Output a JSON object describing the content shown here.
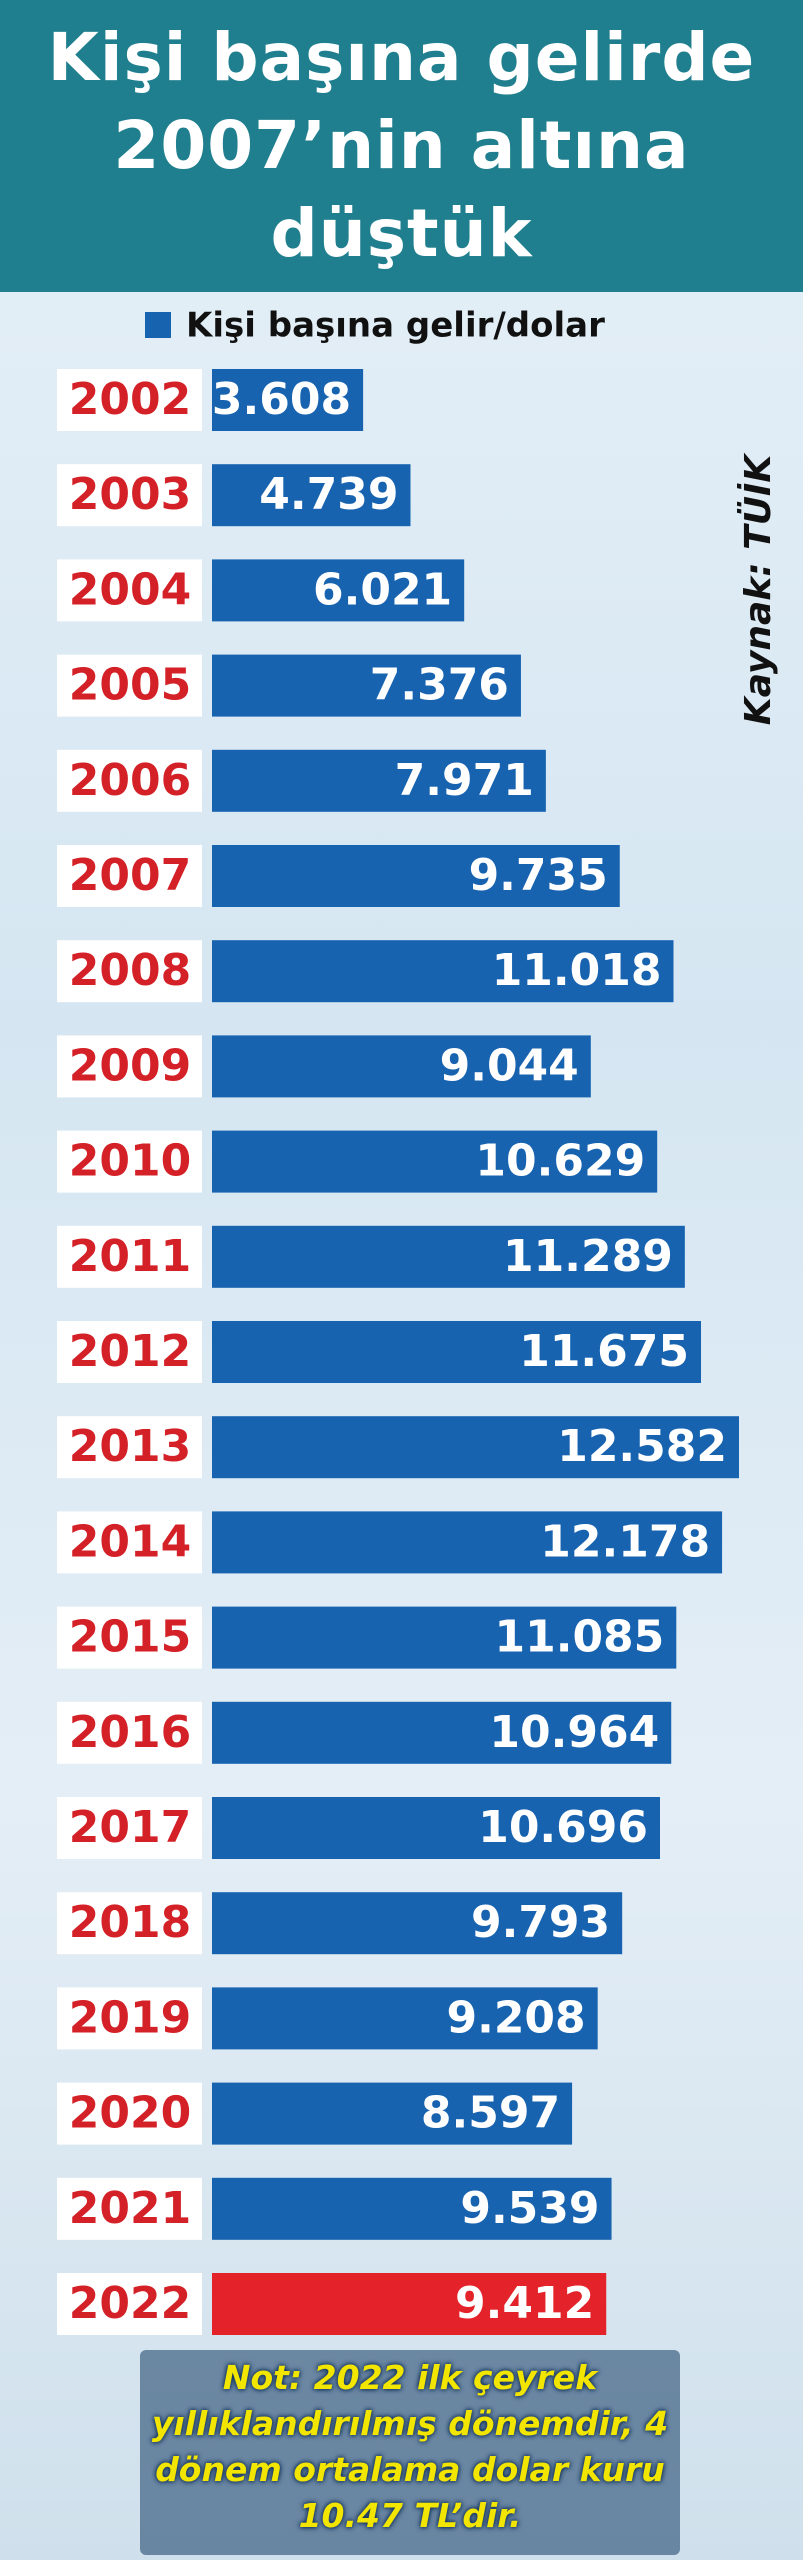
{
  "chart_data": {
    "type": "bar",
    "orientation": "horizontal",
    "title": "Kişi başına gelirde 2007’nin altına düştük",
    "source": "Kaynak: TÜİK",
    "note": "Not: 2022 ilk çeyrek yıllıklandırılmış dönemdir, 4 dönem ortalama dolar kuru 10.47 TL’dir.",
    "categories": [
      "2002",
      "2003",
      "2004",
      "2005",
      "2006",
      "2007",
      "2008",
      "2009",
      "2010",
      "2011",
      "2012",
      "2013",
      "2014",
      "2015",
      "2016",
      "2017",
      "2018",
      "2019",
      "2020",
      "2021",
      "2022"
    ],
    "series": [
      {
        "name": "Kişi başına gelir/dolar",
        "color": "#1763b0",
        "values": [
          3608,
          4739,
          6021,
          7376,
          7971,
          9735,
          11018,
          9044,
          10629,
          11289,
          11675,
          12582,
          12178,
          11085,
          10964,
          10696,
          9793,
          9208,
          8597,
          9539,
          9412
        ],
        "value_labels": [
          "3.608",
          "4.739",
          "6.021",
          "7.376",
          "7.971",
          "9.735",
          "11.018",
          "9.044",
          "10.629",
          "11.289",
          "11.675",
          "12.582",
          "12.178",
          "11.085",
          "10.964",
          "10.696",
          "9.793",
          "9.208",
          "8.597",
          "9.539",
          "9.412"
        ],
        "colors": [
          "#1763b0",
          "#1763b0",
          "#1763b0",
          "#1763b0",
          "#1763b0",
          "#1763b0",
          "#1763b0",
          "#1763b0",
          "#1763b0",
          "#1763b0",
          "#1763b0",
          "#1763b0",
          "#1763b0",
          "#1763b0",
          "#1763b0",
          "#1763b0",
          "#1763b0",
          "#1763b0",
          "#1763b0",
          "#1763b0",
          "#e3222a"
        ]
      }
    ]
  }
}
